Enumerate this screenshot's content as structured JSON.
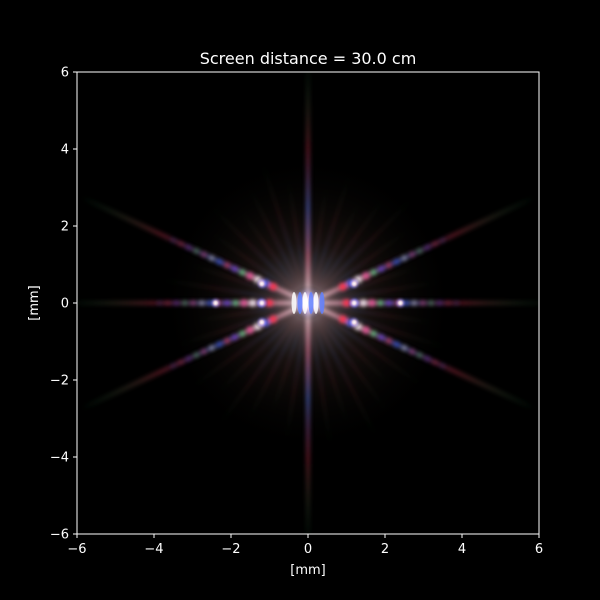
{
  "chart_data": {
    "type": "heatmap",
    "title": "Screen distance = 30.0 cm",
    "xlabel": "[mm]",
    "ylabel": "[mm]",
    "xlim": [
      -6,
      6
    ],
    "ylim": [
      -6,
      6
    ],
    "xticks": [
      -6,
      -4,
      -2,
      0,
      2,
      4,
      6
    ],
    "yticks": [
      -6,
      -4,
      -2,
      0,
      2,
      4,
      6
    ],
    "xtick_labels": [
      "−6",
      "−4",
      "−2",
      "0",
      "2",
      "4",
      "6"
    ],
    "ytick_labels": [
      "−6",
      "−4",
      "−2",
      "0",
      "2",
      "4",
      "6"
    ],
    "grid": false,
    "colors": {
      "background": "#000000",
      "axes_face": "#000000",
      "foreground": "#ffffff"
    },
    "pattern": {
      "description_visible": "polychromatic diffraction pattern with radial streaks",
      "streak_angles_deg": [
        0,
        25,
        90,
        155,
        180,
        205,
        270,
        335
      ],
      "bright_spot_positions": [
        {
          "x": 0.0,
          "y": 0.0
        },
        {
          "x": 1.2,
          "y": 0.0
        },
        {
          "x": -1.2,
          "y": 0.0
        },
        {
          "x": 2.4,
          "y": 0.0
        },
        {
          "x": -2.4,
          "y": 0.0
        },
        {
          "x": 1.2,
          "y": 0.5
        },
        {
          "x": -1.2,
          "y": 0.5
        },
        {
          "x": 1.2,
          "y": -0.5
        },
        {
          "x": -1.2,
          "y": -0.5
        }
      ]
    }
  }
}
